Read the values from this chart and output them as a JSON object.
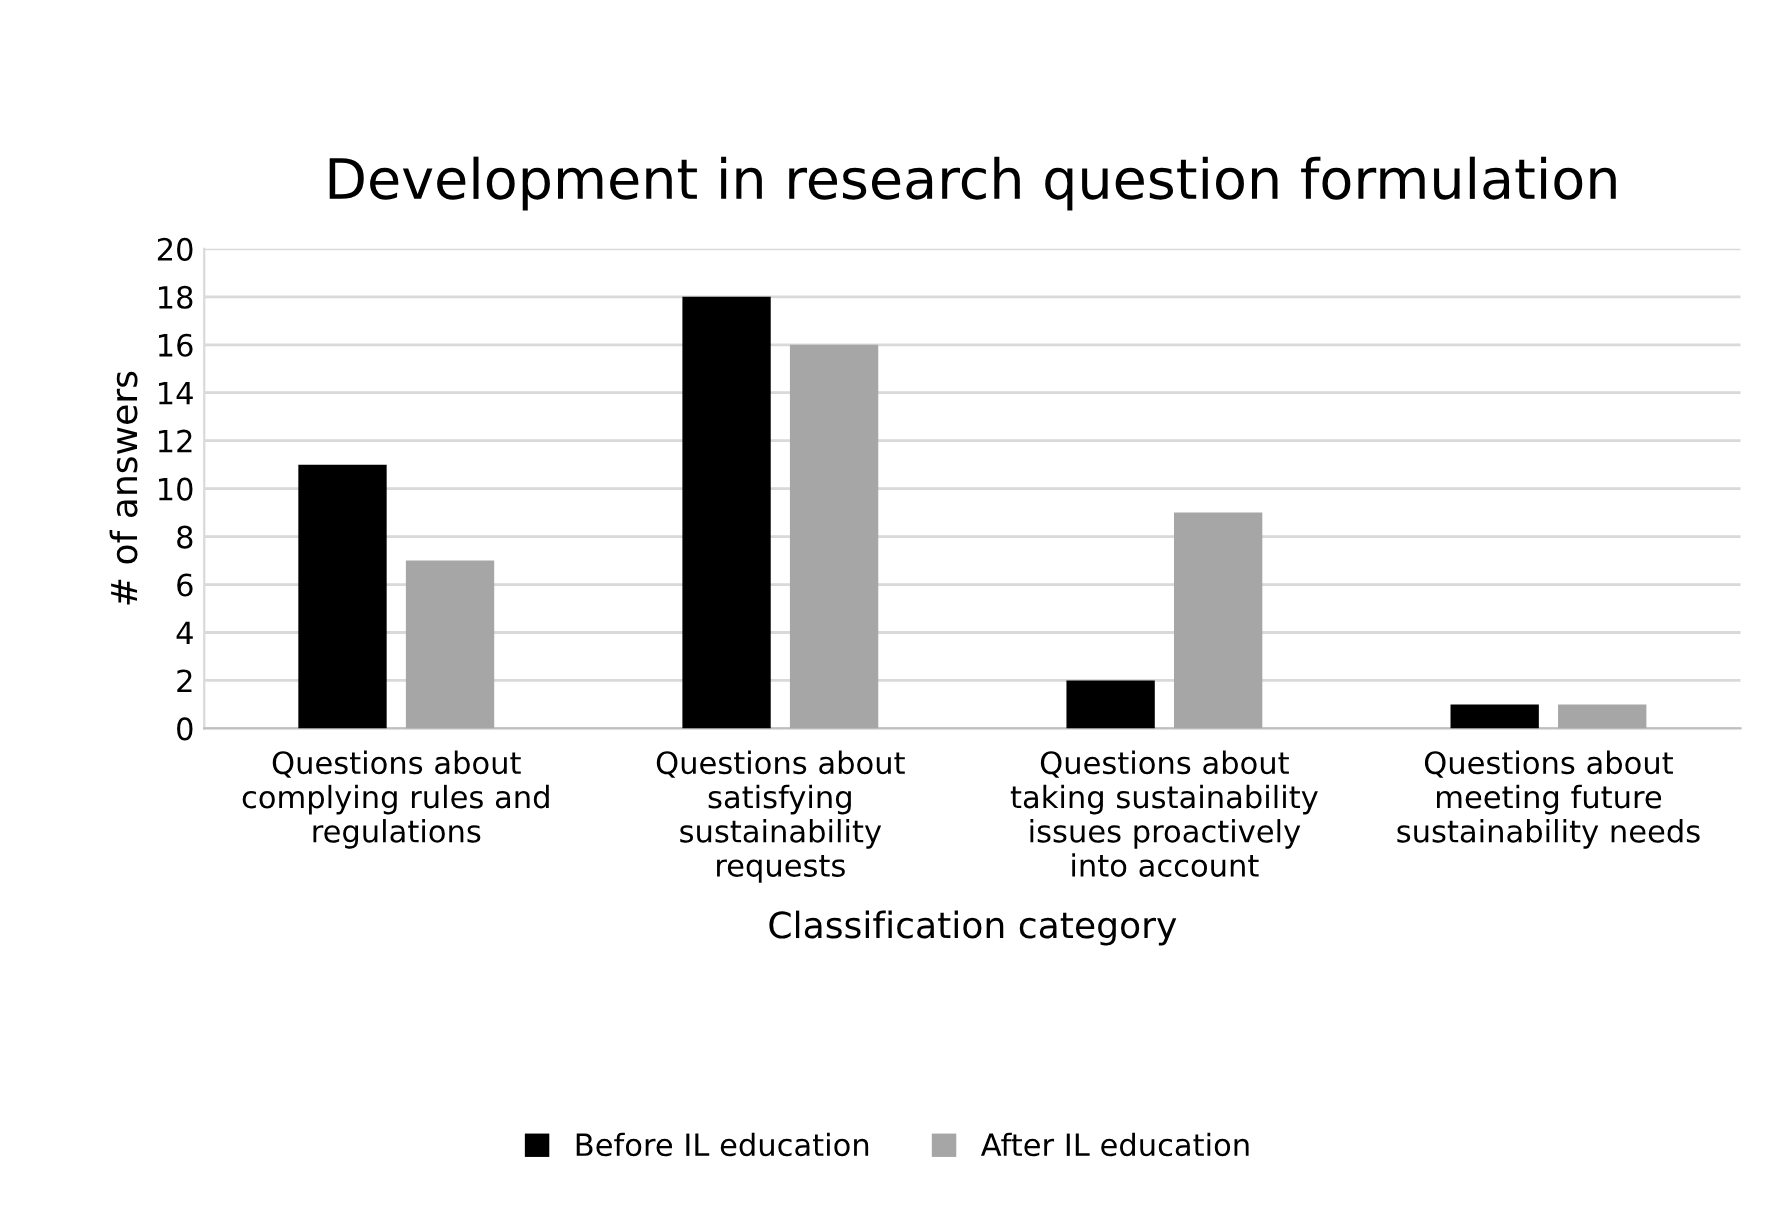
{
  "chart_data": {
    "type": "bar",
    "title": "Development in research question formulation",
    "xlabel": "Classification category",
    "ylabel": "# of answers",
    "categories": [
      "Questions about\ncomplying rules and\nregulations",
      "Questions about\nsatisfying\nsustainability\nrequests",
      "Questions about\ntaking sustainability\nissues proactively\ninto account",
      "Questions about\nmeeting future\nsustainability needs"
    ],
    "series": [
      {
        "name": "Before IL education",
        "color": "#000000",
        "values": [
          11,
          18,
          2,
          1
        ]
      },
      {
        "name": "After IL education",
        "color": "#a6a6a6",
        "values": [
          7,
          16,
          9,
          1
        ]
      }
    ],
    "ylim": [
      0,
      20
    ],
    "yticks": [
      0,
      2,
      4,
      6,
      8,
      10,
      12,
      14,
      16,
      18,
      20
    ],
    "grid": "y",
    "legend": "bottom"
  }
}
